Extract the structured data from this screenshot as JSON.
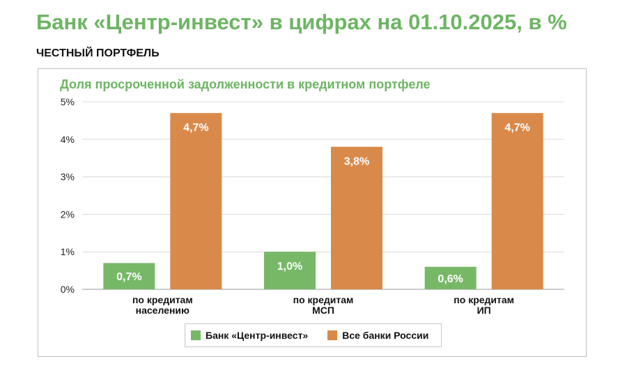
{
  "page": {
    "title": "Банк «Центр-инвест» в цифрах на 01.10.2025, в %",
    "section": "ЧЕСТНЫЙ ПОРТФЕЛЬ"
  },
  "chart_data": {
    "type": "bar",
    "title": "Доля просроченной задолженности в кредитном портфеле",
    "categories": [
      [
        "по кредитам",
        "населению"
      ],
      [
        "по кредитам",
        "МСП"
      ],
      [
        "по кредитам",
        "ИП"
      ]
    ],
    "series": [
      {
        "name": "Банк «Центр-инвест»",
        "color": "#76b866",
        "values": [
          0.7,
          1.0,
          0.6
        ],
        "labels": [
          "0,7%",
          "1,0%",
          "0,6%"
        ]
      },
      {
        "name": "Все банки России",
        "color": "#d98a4a",
        "values": [
          4.7,
          3.8,
          4.7
        ],
        "labels": [
          "4,7%",
          "3,8%",
          "4,7%"
        ]
      }
    ],
    "yticks": [
      "0%",
      "1%",
      "2%",
      "3%",
      "4%",
      "5%"
    ],
    "ylim": [
      0,
      5
    ],
    "grid": true,
    "legend": "bottom"
  }
}
